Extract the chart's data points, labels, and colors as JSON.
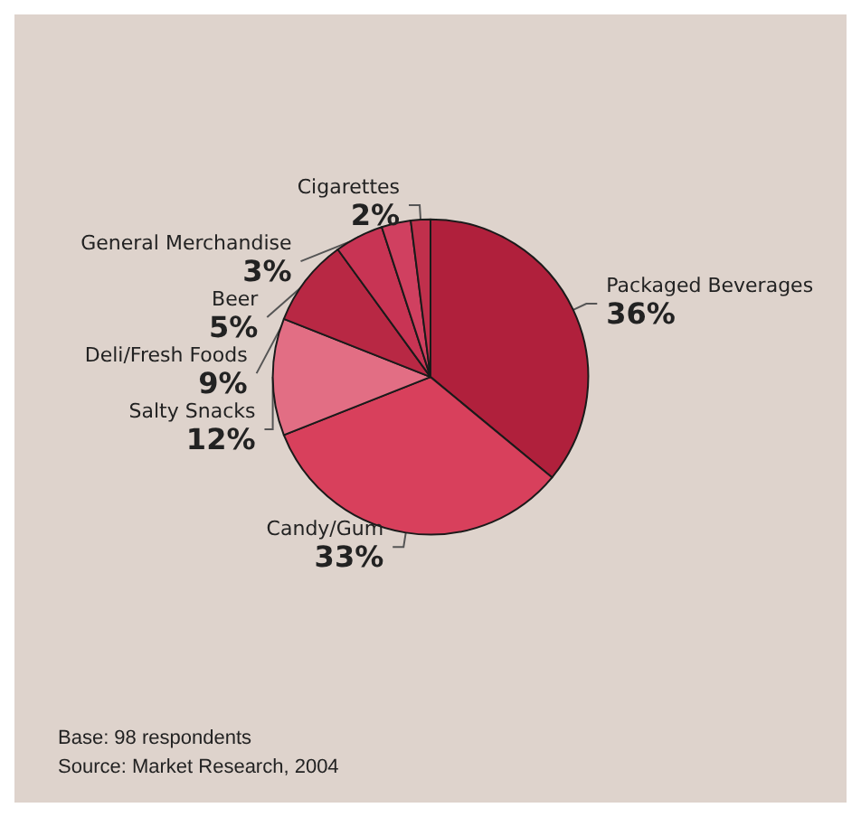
{
  "chart_data": {
    "type": "pie",
    "categories": [
      "Packaged Beverages",
      "Candy/Gum",
      "Salty Snacks",
      "Deli/Fresh Foods",
      "Beer",
      "General Merchandise",
      "Cigarettes"
    ],
    "values": [
      36,
      33,
      12,
      9,
      5,
      3,
      2
    ],
    "colors": [
      "#b0203c",
      "#d8405c",
      "#e26e84",
      "#b82844",
      "#c83454",
      "#d04060",
      "#c0304c"
    ],
    "value_labels": [
      "36%",
      "33%",
      "12%",
      "9%",
      "5%",
      "3%",
      "2%"
    ],
    "data_labels": true,
    "annotations": [
      "Base: 98 respondents",
      "Source: Market Research, 2004"
    ]
  }
}
